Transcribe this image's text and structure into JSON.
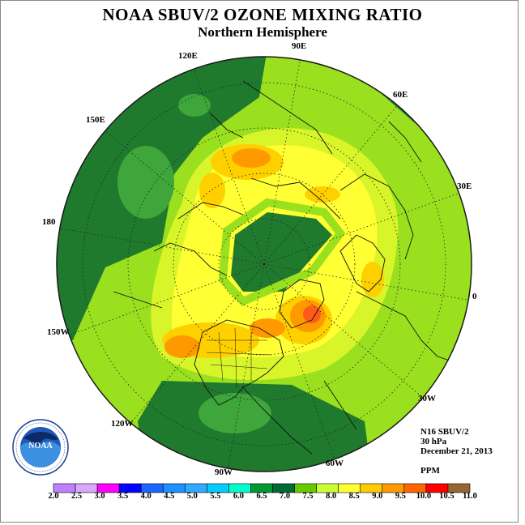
{
  "header": {
    "title": "NOAA SBUV/2 OZONE MIXING RATIO",
    "subtitle": "Northern Hemisphere"
  },
  "longitude_labels": [
    {
      "text": "90E",
      "id": "lon-90e"
    },
    {
      "text": "120E",
      "id": "lon-120e"
    },
    {
      "text": "60E",
      "id": "lon-60e"
    },
    {
      "text": "150E",
      "id": "lon-150e"
    },
    {
      "text": "30E",
      "id": "lon-30e"
    },
    {
      "text": "180",
      "id": "lon-180"
    },
    {
      "text": "0",
      "id": "lon-0"
    },
    {
      "text": "150W",
      "id": "lon-150w"
    },
    {
      "text": "30W",
      "id": "lon-30w"
    },
    {
      "text": "120W",
      "id": "lon-120w"
    },
    {
      "text": "60W",
      "id": "lon-60w"
    },
    {
      "text": "90W",
      "id": "lon-90w"
    }
  ],
  "info": {
    "satellite": "N16 SBUV/2",
    "level": "30 hPa",
    "date": "December 21, 2013",
    "units": "PPM"
  },
  "logo": {
    "text": "NOAA",
    "ring_text": "NATIONAL OCEANIC AND ATMOSPHERIC ADMINISTRATION · U.S. DEPARTMENT OF COMMERCE"
  },
  "colorbar": {
    "labels": [
      "2.0",
      "2.5",
      "3.0",
      "3.5",
      "4.0",
      "4.5",
      "5.0",
      "5.5",
      "6.0",
      "6.5",
      "7.0",
      "7.5",
      "8.0",
      "8.5",
      "9.0",
      "9.5",
      "10.0",
      "10.5",
      "11.0"
    ],
    "colors": [
      "#bf80ff",
      "#d8a8ff",
      "#ff00ff",
      "#0000ff",
      "#1a66ff",
      "#1e90ff",
      "#33aaff",
      "#00ccff",
      "#00ffcc",
      "#009933",
      "#006b33",
      "#66cc00",
      "#ccff33",
      "#ffff33",
      "#ffcc00",
      "#ff9900",
      "#ff6600",
      "#ff0000",
      "#996633"
    ]
  },
  "map_colors": {
    "dark_green": "#1f7a2e",
    "mid_green": "#3ea63a",
    "lime": "#9ae01e",
    "yellow_green": "#d8f52a",
    "yellow": "#ffff33",
    "gold": "#ffd000",
    "orange": "#ff9900",
    "red_orange": "#ff5a1a"
  }
}
